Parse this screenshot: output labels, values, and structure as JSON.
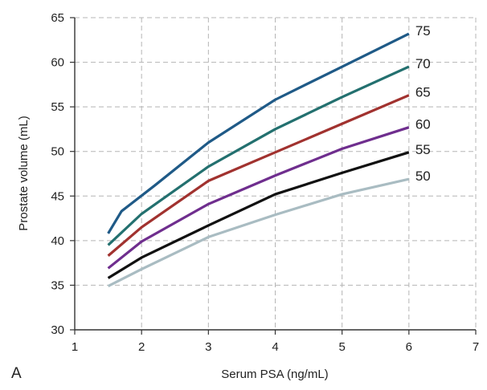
{
  "panel_label": "A",
  "chart_data": {
    "type": "line",
    "title": "",
    "xlabel": "Serum PSA (ng/mL)",
    "ylabel": "Prostate volume (mL)",
    "xlim": [
      1,
      7
    ],
    "ylim": [
      30,
      65
    ],
    "x_ticks": [
      1,
      2,
      3,
      4,
      5,
      6,
      7
    ],
    "y_ticks": [
      30,
      35,
      40,
      45,
      50,
      55,
      60,
      65
    ],
    "grid": true,
    "series": [
      {
        "name": "75",
        "color": "#1f5a87",
        "x": [
          1.5,
          1.7,
          2.2,
          3,
          4,
          5,
          6
        ],
        "y": [
          40.8,
          43.3,
          46.2,
          51,
          55.8,
          59.5,
          63.2
        ]
      },
      {
        "name": "70",
        "color": "#23706f",
        "x": [
          1.5,
          2,
          3,
          4,
          5,
          6
        ],
        "y": [
          39.5,
          43,
          48.3,
          52.5,
          56.1,
          59.5
        ]
      },
      {
        "name": "65",
        "color": "#a1322f",
        "x": [
          1.5,
          2,
          3,
          4,
          5,
          6
        ],
        "y": [
          38.3,
          41.5,
          46.7,
          49.9,
          53.1,
          56.3
        ]
      },
      {
        "name": "60",
        "color": "#6f2e8e",
        "x": [
          1.5,
          2,
          3,
          4,
          5,
          6
        ],
        "y": [
          36.9,
          39.9,
          44.1,
          47.3,
          50.3,
          52.7
        ]
      },
      {
        "name": "55",
        "color": "#111111",
        "x": [
          1.5,
          2,
          3,
          4,
          5,
          6
        ],
        "y": [
          35.8,
          38.1,
          41.7,
          45.2,
          47.6,
          49.9
        ]
      },
      {
        "name": "50",
        "color": "#a9bcc2",
        "x": [
          1.5,
          2,
          3,
          4,
          5,
          6
        ],
        "y": [
          34.9,
          36.8,
          40.4,
          42.9,
          45.2,
          46.9
        ]
      }
    ]
  }
}
